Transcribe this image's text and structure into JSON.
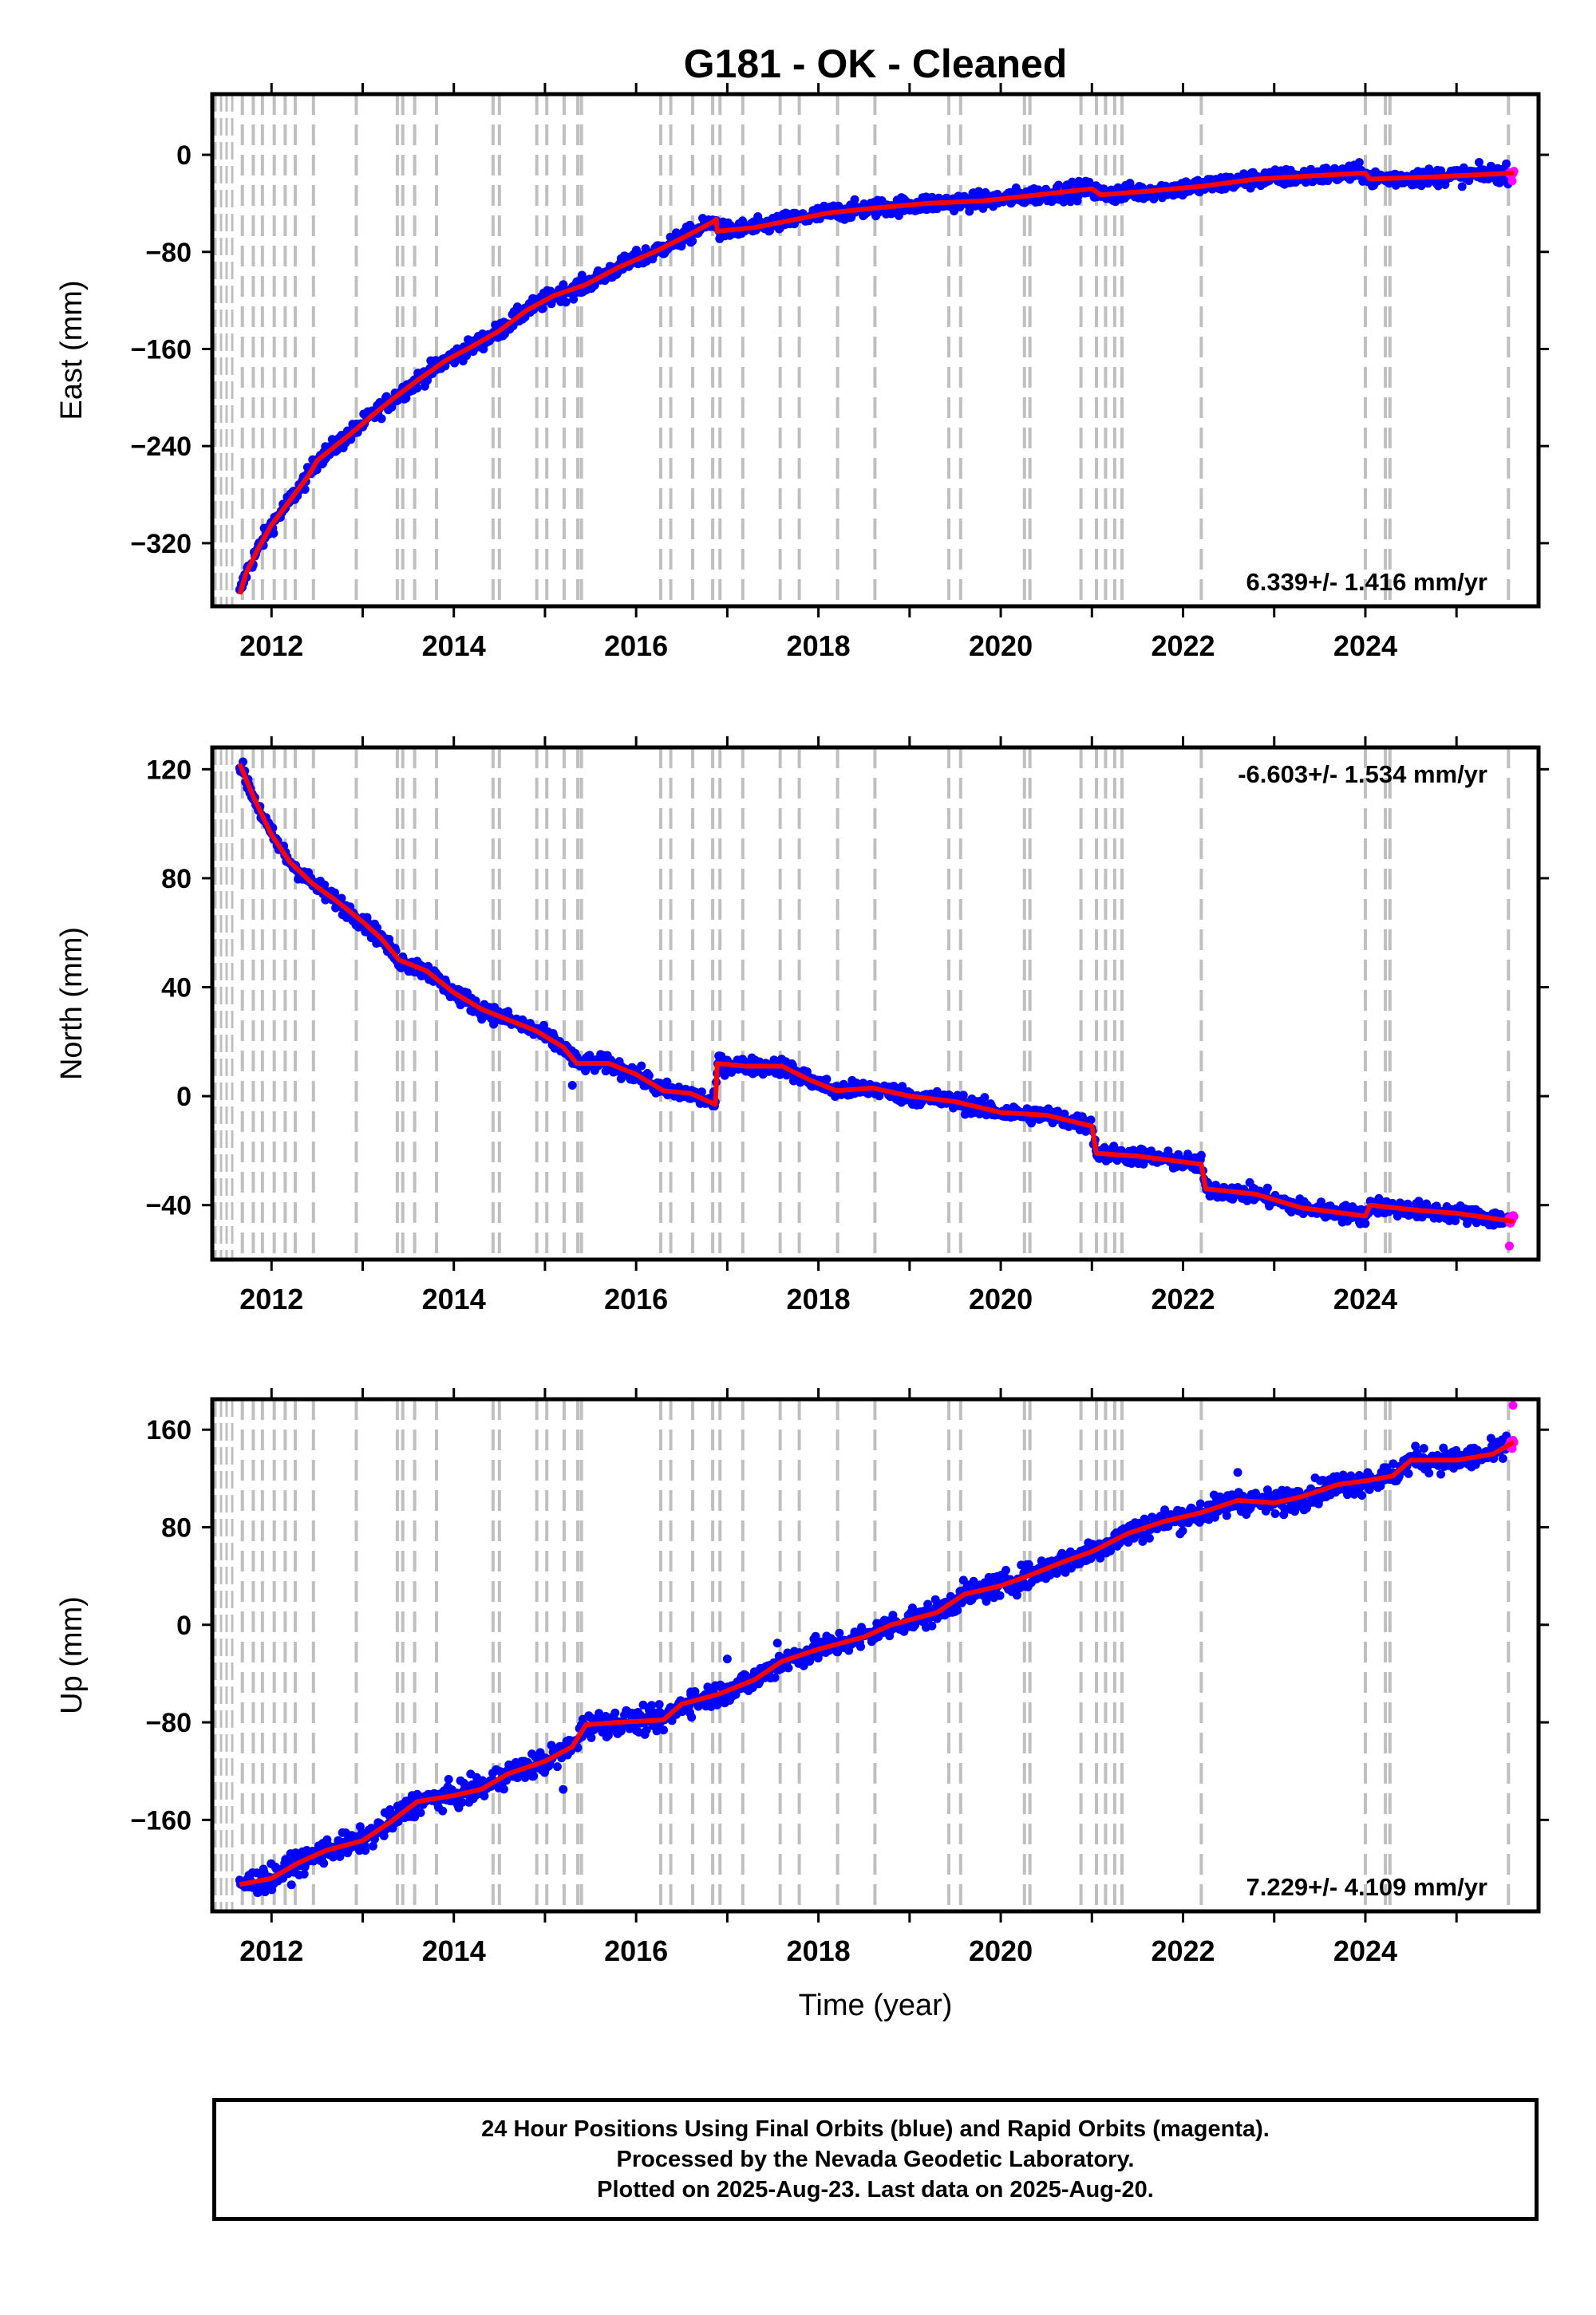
{
  "title": "G181  - OK - Cleaned",
  "colors": {
    "final_points": "#0000ff",
    "rapid_points": "#ff00ff",
    "model_line": "#ff0000",
    "breaks": "#bfbfbf",
    "axes": "#000000"
  },
  "chart_data": [
    {
      "type": "scatter",
      "component": "East",
      "ylabel": "East (mm)",
      "xlabel": "",
      "xlim": [
        2011.35,
        2025.9
      ],
      "ylim": [
        -372,
        50
      ],
      "yticks": [
        0,
        -80,
        -160,
        -240,
        -320
      ],
      "xticks": [
        2012,
        2014,
        2016,
        2018,
        2020,
        2022,
        2024
      ],
      "rate_text": "6.339+/- 1.416 mm/yr",
      "rate_position": "bottom-right",
      "scatter": 5,
      "outliers": [],
      "model": [
        [
          2011.65,
          -362
        ],
        [
          2011.72,
          -345
        ],
        [
          2011.85,
          -325
        ],
        [
          2012.0,
          -305
        ],
        [
          2012.2,
          -285
        ],
        [
          2012.4,
          -265
        ],
        [
          2012.5,
          -252
        ],
        [
          2012.7,
          -240
        ],
        [
          2012.9,
          -228
        ],
        [
          2013.1,
          -215
        ],
        [
          2013.35,
          -200
        ],
        [
          2013.6,
          -186
        ],
        [
          2013.9,
          -170
        ],
        [
          2014.2,
          -158
        ],
        [
          2014.5,
          -145
        ],
        [
          2014.8,
          -128
        ],
        [
          2015.1,
          -116
        ],
        [
          2015.45,
          -107
        ],
        [
          2015.8,
          -93
        ],
        [
          2016.2,
          -80
        ],
        [
          2016.55,
          -67
        ],
        [
          2016.85,
          -55
        ],
        [
          2016.88,
          -53
        ],
        [
          2016.89,
          -63
        ],
        [
          2017.3,
          -60
        ],
        [
          2017.7,
          -54
        ],
        [
          2018.1,
          -48
        ],
        [
          2018.6,
          -44
        ],
        [
          2019.2,
          -40
        ],
        [
          2019.8,
          -38
        ],
        [
          2020.4,
          -33
        ],
        [
          2021.0,
          -28
        ],
        [
          2021.1,
          -33
        ],
        [
          2021.6,
          -30
        ],
        [
          2022.2,
          -26
        ],
        [
          2022.8,
          -20
        ],
        [
          2023.5,
          -17
        ],
        [
          2024.0,
          -15
        ],
        [
          2024.05,
          -20
        ],
        [
          2024.8,
          -18
        ],
        [
          2025.63,
          -15
        ]
      ]
    },
    {
      "type": "scatter",
      "component": "North",
      "ylabel": "North (mm)",
      "xlabel": "",
      "xlim": [
        2011.35,
        2025.9
      ],
      "ylim": [
        -60,
        128
      ],
      "yticks": [
        120,
        80,
        40,
        0,
        -40
      ],
      "xticks": [
        2012,
        2014,
        2016,
        2018,
        2020,
        2022,
        2024
      ],
      "rate_text": "-6.603+/- 1.534 mm/yr",
      "rate_position": "top-right",
      "scatter": 2.2,
      "outliers": [
        [
          2015.3,
          4
        ],
        [
          2025.58,
          -55
        ]
      ],
      "model": [
        [
          2011.65,
          122
        ],
        [
          2011.8,
          110
        ],
        [
          2012.0,
          96
        ],
        [
          2012.2,
          86
        ],
        [
          2012.45,
          78
        ],
        [
          2012.7,
          72
        ],
        [
          2013.0,
          64
        ],
        [
          2013.2,
          58
        ],
        [
          2013.4,
          50
        ],
        [
          2013.7,
          46
        ],
        [
          2014.0,
          38
        ],
        [
          2014.3,
          32
        ],
        [
          2014.6,
          28
        ],
        [
          2014.9,
          24
        ],
        [
          2015.2,
          18
        ],
        [
          2015.35,
          12
        ],
        [
          2015.7,
          12
        ],
        [
          2016.0,
          8
        ],
        [
          2016.3,
          2
        ],
        [
          2016.6,
          1
        ],
        [
          2016.87,
          -3
        ],
        [
          2016.89,
          12
        ],
        [
          2017.2,
          11
        ],
        [
          2017.6,
          11
        ],
        [
          2017.9,
          6
        ],
        [
          2018.2,
          2
        ],
        [
          2018.6,
          3
        ],
        [
          2019.0,
          0
        ],
        [
          2019.5,
          -2
        ],
        [
          2020.0,
          -6
        ],
        [
          2020.5,
          -7
        ],
        [
          2021.0,
          -11
        ],
        [
          2021.05,
          -21
        ],
        [
          2021.5,
          -22
        ],
        [
          2022.2,
          -25
        ],
        [
          2022.25,
          -34
        ],
        [
          2022.8,
          -36
        ],
        [
          2023.3,
          -41
        ],
        [
          2024.0,
          -44
        ],
        [
          2024.05,
          -40
        ],
        [
          2024.6,
          -42
        ],
        [
          2025.0,
          -43
        ],
        [
          2025.63,
          -46
        ]
      ]
    },
    {
      "type": "scatter",
      "component": "Up",
      "ylabel": "Up (mm)",
      "xlabel": "Time (year)",
      "xlim": [
        2011.35,
        2025.9
      ],
      "ylim": [
        -235,
        185
      ],
      "yticks": [
        160,
        80,
        0,
        -80,
        -160
      ],
      "xticks": [
        2012,
        2014,
        2016,
        2018,
        2020,
        2022,
        2024
      ],
      "rate_text": "7.229+/- 4.109 mm/yr",
      "rate_position": "bottom-right",
      "scatter": 7,
      "outliers": [
        [
          2015.2,
          -135
        ],
        [
          2016.6,
          -55
        ],
        [
          2017.0,
          -28
        ],
        [
          2017.55,
          -15
        ],
        [
          2022.6,
          125
        ],
        [
          2025.62,
          180
        ]
      ],
      "model": [
        [
          2011.65,
          -213
        ],
        [
          2012.0,
          -208
        ],
        [
          2012.3,
          -195
        ],
        [
          2012.6,
          -185
        ],
        [
          2013.0,
          -177
        ],
        [
          2013.3,
          -162
        ],
        [
          2013.6,
          -145
        ],
        [
          2014.0,
          -140
        ],
        [
          2014.3,
          -135
        ],
        [
          2014.6,
          -122
        ],
        [
          2015.0,
          -112
        ],
        [
          2015.3,
          -100
        ],
        [
          2015.45,
          -82
        ],
        [
          2015.8,
          -80
        ],
        [
          2016.3,
          -78
        ],
        [
          2016.5,
          -65
        ],
        [
          2016.9,
          -57
        ],
        [
          2017.3,
          -45
        ],
        [
          2017.6,
          -30
        ],
        [
          2018.0,
          -20
        ],
        [
          2018.5,
          -10
        ],
        [
          2018.8,
          0
        ],
        [
          2019.3,
          10
        ],
        [
          2019.6,
          25
        ],
        [
          2020.0,
          32
        ],
        [
          2020.3,
          40
        ],
        [
          2020.7,
          52
        ],
        [
          2021.0,
          60
        ],
        [
          2021.4,
          75
        ],
        [
          2021.8,
          85
        ],
        [
          2022.2,
          92
        ],
        [
          2022.6,
          102
        ],
        [
          2023.0,
          100
        ],
        [
          2023.3,
          105
        ],
        [
          2023.7,
          115
        ],
        [
          2024.0,
          118
        ],
        [
          2024.3,
          122
        ],
        [
          2024.5,
          135
        ],
        [
          2025.0,
          135
        ],
        [
          2025.4,
          140
        ],
        [
          2025.63,
          150
        ]
      ]
    }
  ],
  "data_range": {
    "start": 2011.65,
    "end": 2025.63,
    "rapid_start": 2025.57
  },
  "break_epochs": [
    2011.68,
    2011.8,
    2011.9,
    2012.03,
    2012.15,
    2012.26,
    2012.46,
    2012.93,
    2013.38,
    2013.44,
    2013.57,
    2013.81,
    2014.43,
    2014.5,
    2014.91,
    2015.02,
    2015.21,
    2015.36,
    2015.4,
    2016.27,
    2016.38,
    2016.62,
    2016.84,
    2016.92,
    2017.17,
    2017.58,
    2017.79,
    2018.21,
    2018.62,
    2019.43,
    2019.56,
    2020.26,
    2020.32,
    2020.88,
    2021.05,
    2021.15,
    2021.25,
    2021.33,
    2022.2,
    2024.0,
    2024.22,
    2024.27,
    2025.57
  ],
  "footer": {
    "line1": "24 Hour Positions Using Final Orbits (blue) and Rapid Orbits (magenta).",
    "line2": "Processed by the Nevada Geodetic Laboratory.",
    "line3": "Plotted on 2025-Aug-23. Last data on 2025-Aug-20."
  }
}
